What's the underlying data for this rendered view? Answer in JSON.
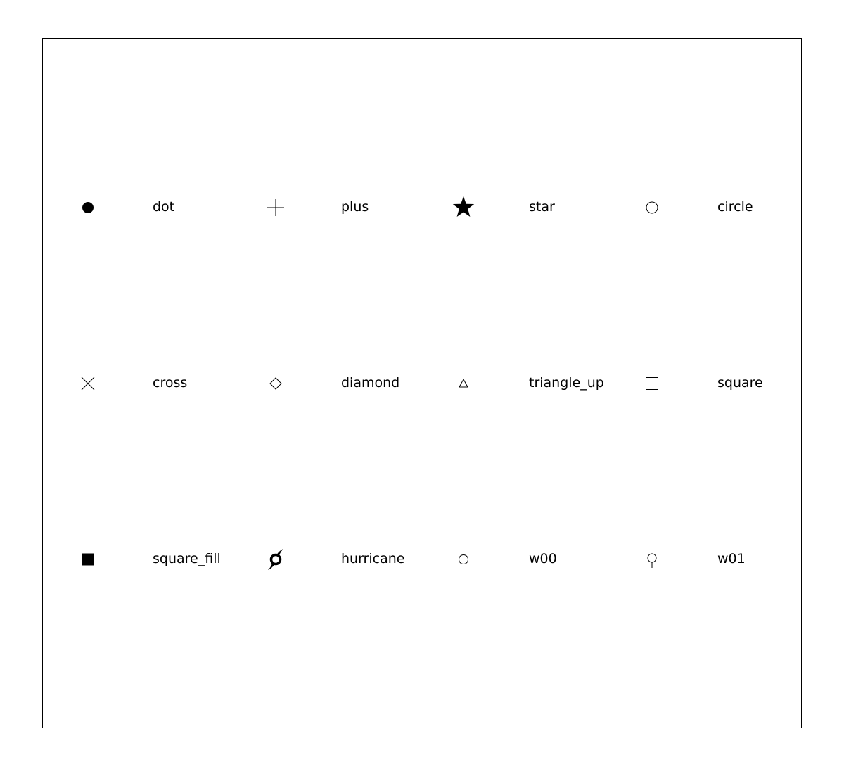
{
  "colors": {
    "ink": "#000000",
    "background": "#ffffff"
  },
  "markers": [
    {
      "symbol": "dot",
      "label": "dot"
    },
    {
      "symbol": "plus",
      "label": "plus"
    },
    {
      "symbol": "star",
      "label": "star"
    },
    {
      "symbol": "circle",
      "label": "circle"
    },
    {
      "symbol": "cross",
      "label": "cross"
    },
    {
      "symbol": "diamond",
      "label": "diamond"
    },
    {
      "symbol": "triangle_up",
      "label": "triangle_up"
    },
    {
      "symbol": "square",
      "label": "square"
    },
    {
      "symbol": "square_fill",
      "label": "square_fill"
    },
    {
      "symbol": "hurricane",
      "label": "hurricane"
    },
    {
      "symbol": "w00",
      "label": "w00"
    },
    {
      "symbol": "w01",
      "label": "w01"
    }
  ]
}
